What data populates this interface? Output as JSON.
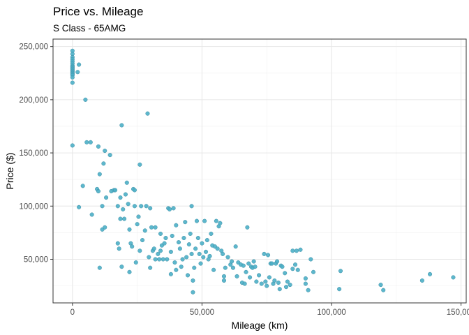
{
  "chart_data": {
    "type": "scatter",
    "title": "Price vs. Mileage",
    "subtitle": "S Class - 65AMG",
    "xlabel": "Mileage (km)",
    "ylabel": "Price ($)",
    "xlim": [
      -7500,
      152000
    ],
    "ylim": [
      9000,
      257000
    ],
    "xticks": [
      0,
      50000,
      100000,
      150000
    ],
    "xtick_labels": [
      "0",
      "50,000",
      "100,000",
      "150,000"
    ],
    "yticks": [
      50000,
      100000,
      150000,
      200000,
      250000
    ],
    "ytick_labels": [
      "50,000",
      "100,000",
      "150,000",
      "200,000",
      "250,000"
    ],
    "grid": true,
    "point_color": "#4BAFC7",
    "point_stroke": "#3E8FA6",
    "series": [
      {
        "points": [
          [
            0,
            246000
          ],
          [
            0,
            243000
          ],
          [
            0,
            240000
          ],
          [
            0,
            238000
          ],
          [
            0,
            236000
          ],
          [
            0,
            234000
          ],
          [
            0,
            232000
          ],
          [
            0,
            231000
          ],
          [
            0,
            230000
          ],
          [
            0,
            229000
          ],
          [
            0,
            228000
          ],
          [
            0,
            227000
          ],
          [
            0,
            226000
          ],
          [
            0,
            225000
          ],
          [
            0,
            224000
          ],
          [
            0,
            223000
          ],
          [
            0,
            221000
          ],
          [
            0,
            216000
          ],
          [
            0,
            157000
          ],
          [
            2500,
            233000
          ],
          [
            2000,
            226000
          ],
          [
            2500,
            99000
          ],
          [
            4000,
            119000
          ],
          [
            5000,
            200000
          ],
          [
            5500,
            160000
          ],
          [
            7000,
            160000
          ],
          [
            7500,
            92000
          ],
          [
            9500,
            116000
          ],
          [
            10000,
            114000
          ],
          [
            10000,
            156000
          ],
          [
            10500,
            130000
          ],
          [
            10500,
            42000
          ],
          [
            11500,
            100000
          ],
          [
            11500,
            78000
          ],
          [
            12000,
            140000
          ],
          [
            12500,
            152000
          ],
          [
            12500,
            80000
          ],
          [
            13000,
            108000
          ],
          [
            14500,
            148000
          ],
          [
            15000,
            114000
          ],
          [
            16000,
            115000
          ],
          [
            16500,
            115000
          ],
          [
            17500,
            100000
          ],
          [
            17500,
            65000
          ],
          [
            18000,
            60000
          ],
          [
            18500,
            88000
          ],
          [
            18500,
            108000
          ],
          [
            19000,
            176000
          ],
          [
            19000,
            43000
          ],
          [
            19500,
            97000
          ],
          [
            20000,
            88000
          ],
          [
            20500,
            111000
          ],
          [
            21000,
            122000
          ],
          [
            21500,
            102000
          ],
          [
            22000,
            78000
          ],
          [
            22000,
            38000
          ],
          [
            22500,
            65000
          ],
          [
            23000,
            62000
          ],
          [
            23500,
            116000
          ],
          [
            24000,
            115000
          ],
          [
            24000,
            100000
          ],
          [
            24500,
            47000
          ],
          [
            25000,
            83000
          ],
          [
            25500,
            90000
          ],
          [
            26000,
            139000
          ],
          [
            26000,
            58000
          ],
          [
            26500,
            100000
          ],
          [
            27000,
            68000
          ],
          [
            28000,
            77000
          ],
          [
            28500,
            100000
          ],
          [
            29000,
            187000
          ],
          [
            29500,
            52000
          ],
          [
            30000,
            98000
          ],
          [
            30000,
            42000
          ],
          [
            30500,
            80000
          ],
          [
            31000,
            58000
          ],
          [
            31500,
            60000
          ],
          [
            32000,
            80000
          ],
          [
            32000,
            50000
          ],
          [
            33000,
            55000
          ],
          [
            33500,
            50000
          ],
          [
            34000,
            58000
          ],
          [
            34000,
            74000
          ],
          [
            34500,
            63000
          ],
          [
            35000,
            50000
          ],
          [
            35500,
            65000
          ],
          [
            36000,
            70000
          ],
          [
            36500,
            50000
          ],
          [
            37000,
            98000
          ],
          [
            37500,
            97000
          ],
          [
            38000,
            36000
          ],
          [
            38000,
            57000
          ],
          [
            38500,
            72000
          ],
          [
            39000,
            98000
          ],
          [
            39500,
            47000
          ],
          [
            40000,
            82000
          ],
          [
            40000,
            40000
          ],
          [
            41000,
            66000
          ],
          [
            41500,
            60000
          ],
          [
            42000,
            43000
          ],
          [
            42500,
            50000
          ],
          [
            43000,
            70000
          ],
          [
            43500,
            85000
          ],
          [
            44000,
            52000
          ],
          [
            44500,
            35000
          ],
          [
            45000,
            64000
          ],
          [
            45500,
            74000
          ],
          [
            46000,
            55000
          ],
          [
            46000,
            100000
          ],
          [
            46500,
            30000
          ],
          [
            46500,
            19000
          ],
          [
            47000,
            42000
          ],
          [
            47500,
            60000
          ],
          [
            48000,
            86000
          ],
          [
            48500,
            70000
          ],
          [
            49000,
            55000
          ],
          [
            49500,
            46000
          ],
          [
            50000,
            65000
          ],
          [
            50500,
            52000
          ],
          [
            51000,
            86000
          ],
          [
            51500,
            57000
          ],
          [
            52000,
            68000
          ],
          [
            52500,
            50000
          ],
          [
            53000,
            53000
          ],
          [
            53500,
            74000
          ],
          [
            54000,
            63000
          ],
          [
            54500,
            40000
          ],
          [
            55000,
            62000
          ],
          [
            55500,
            86000
          ],
          [
            56000,
            60000
          ],
          [
            56500,
            81000
          ],
          [
            57000,
            84000
          ],
          [
            57500,
            58000
          ],
          [
            58000,
            55000
          ],
          [
            58500,
            34000
          ],
          [
            58500,
            30000
          ],
          [
            59000,
            42000
          ],
          [
            60000,
            52000
          ],
          [
            61000,
            45000
          ],
          [
            61500,
            48000
          ],
          [
            62000,
            42000
          ],
          [
            63000,
            62000
          ],
          [
            63500,
            34000
          ],
          [
            64000,
            47000
          ],
          [
            65000,
            45000
          ],
          [
            65500,
            28000
          ],
          [
            66000,
            44000
          ],
          [
            66500,
            27000
          ],
          [
            67000,
            38000
          ],
          [
            67500,
            80000
          ],
          [
            68000,
            46000
          ],
          [
            68500,
            33000
          ],
          [
            69000,
            43000
          ],
          [
            69500,
            42000
          ],
          [
            70000,
            48000
          ],
          [
            70500,
            43000
          ],
          [
            71000,
            29000
          ],
          [
            72000,
            35000
          ],
          [
            73000,
            27000
          ],
          [
            74000,
            55000
          ],
          [
            74500,
            29000
          ],
          [
            75000,
            25000
          ],
          [
            75500,
            54000
          ],
          [
            76000,
            33000
          ],
          [
            76500,
            46000
          ],
          [
            77000,
            46000
          ],
          [
            77500,
            27000
          ],
          [
            78000,
            30000
          ],
          [
            78500,
            46000
          ],
          [
            79000,
            48000
          ],
          [
            79500,
            28000
          ],
          [
            80000,
            22000
          ],
          [
            80500,
            44000
          ],
          [
            81000,
            43000
          ],
          [
            82000,
            37000
          ],
          [
            82500,
            24000
          ],
          [
            83000,
            29000
          ],
          [
            84000,
            26000
          ],
          [
            85000,
            41000
          ],
          [
            85000,
            58000
          ],
          [
            86000,
            45000
          ],
          [
            86500,
            58000
          ],
          [
            87000,
            40000
          ],
          [
            88000,
            59000
          ],
          [
            90000,
            32000
          ],
          [
            90000,
            27000
          ],
          [
            91000,
            21000
          ],
          [
            92000,
            50000
          ],
          [
            93000,
            38000
          ],
          [
            103000,
            22000
          ],
          [
            103500,
            39000
          ],
          [
            119000,
            26000
          ],
          [
            120000,
            21000
          ],
          [
            135000,
            30000
          ],
          [
            138000,
            36000
          ],
          [
            147000,
            33000
          ]
        ]
      }
    ]
  }
}
